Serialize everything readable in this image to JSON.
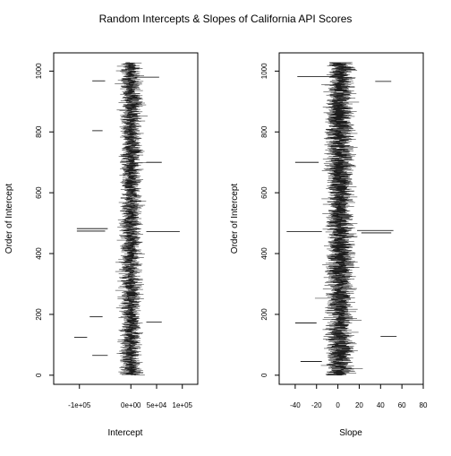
{
  "title": "Random Intercepts & Slopes of California API Scores",
  "chart_data": [
    {
      "type": "interval",
      "xlabel": "Intercept",
      "ylabel": "Order of Intercept",
      "xlim": [
        -150000,
        130000
      ],
      "ylim": [
        -30,
        1060
      ],
      "x_ticks": [
        -100000,
        0,
        50000,
        100000
      ],
      "x_tick_labels": [
        "-1e+05",
        "0e+00",
        "5e+04",
        "1e+05"
      ],
      "y_ticks": [
        0,
        200,
        400,
        600,
        800,
        1000
      ],
      "y_tick_labels": [
        "0",
        "200",
        "400",
        "600",
        "800",
        "1000"
      ],
      "n_intervals": 1029,
      "center_mean": 0,
      "center_spread": 6000,
      "typical_halfwidth": 9000,
      "outlier_intervals": [
        {
          "y": 980,
          "lo": 8000,
          "hi": 55000
        },
        {
          "y": 968,
          "lo": -75000,
          "hi": -50000
        },
        {
          "y": 804,
          "lo": -75000,
          "hi": -55000
        },
        {
          "y": 700,
          "lo": 30000,
          "hi": 60000
        },
        {
          "y": 482,
          "lo": -105000,
          "hi": -45000
        },
        {
          "y": 474,
          "lo": -105000,
          "hi": -50000
        },
        {
          "y": 472,
          "lo": 30000,
          "hi": 95000
        },
        {
          "y": 192,
          "lo": -80000,
          "hi": -55000
        },
        {
          "y": 175,
          "lo": 30000,
          "hi": 60000
        },
        {
          "y": 125,
          "lo": -110000,
          "hi": -85000
        },
        {
          "y": 65,
          "lo": -75000,
          "hi": -45000
        }
      ]
    },
    {
      "type": "interval",
      "xlabel": "Slope",
      "ylabel": "Order of Intercept",
      "xlim": [
        -55,
        80
      ],
      "ylim": [
        -30,
        1060
      ],
      "x_ticks": [
        -40,
        -20,
        0,
        20,
        40,
        60,
        80
      ],
      "x_tick_labels": [
        "-40",
        "-20",
        "0",
        "20",
        "40",
        "60",
        "80"
      ],
      "y_ticks": [
        0,
        200,
        400,
        600,
        800,
        1000
      ],
      "y_tick_labels": [
        "0",
        "200",
        "400",
        "600",
        "800",
        "1000"
      ],
      "n_intervals": 1029,
      "center_mean": 2,
      "center_spread": 3.5,
      "typical_halfwidth": 6,
      "outlier_intervals": [
        {
          "y": 982,
          "lo": -38,
          "hi": -5
        },
        {
          "y": 966,
          "lo": 35,
          "hi": 50
        },
        {
          "y": 700,
          "lo": -40,
          "hi": -18
        },
        {
          "y": 476,
          "lo": 18,
          "hi": 52
        },
        {
          "y": 472,
          "lo": -48,
          "hi": -15
        },
        {
          "y": 468,
          "lo": 22,
          "hi": 50
        },
        {
          "y": 172,
          "lo": -40,
          "hi": -20
        },
        {
          "y": 128,
          "lo": 40,
          "hi": 55
        },
        {
          "y": 45,
          "lo": -35,
          "hi": -15
        }
      ]
    }
  ]
}
